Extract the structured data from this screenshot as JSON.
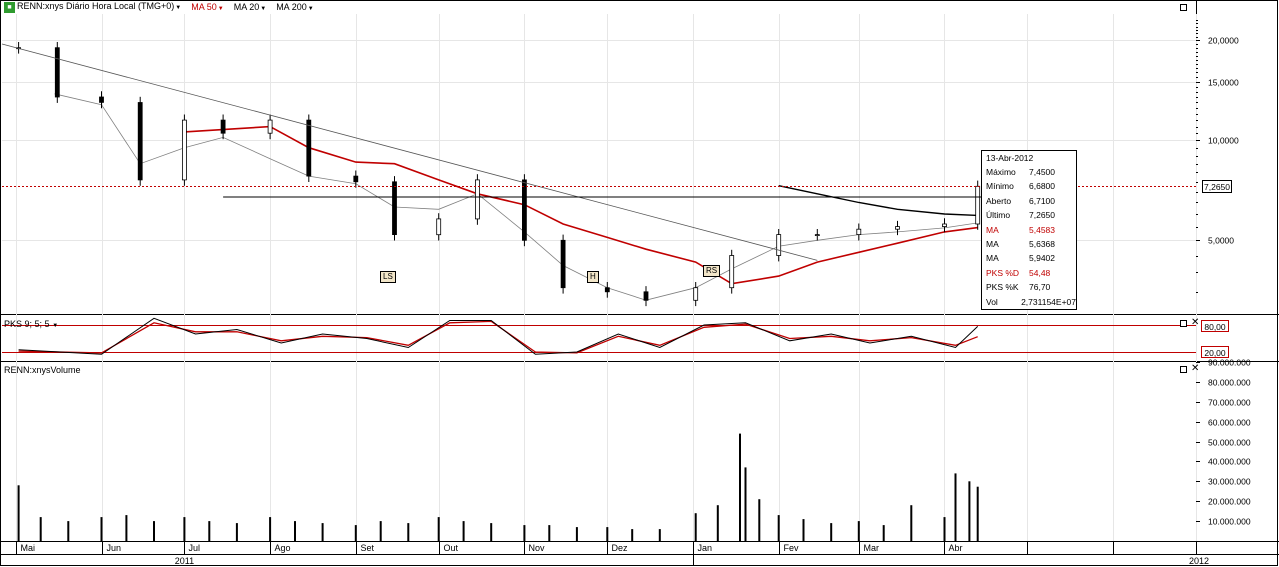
{
  "toolbar": {
    "symbol_title": "RENN:xnys Diário Hora Local (TMG+0)",
    "ma_a": "MA 50",
    "ma_b": "MA 20",
    "ma_c": "MA 200",
    "colors": {
      "ma_a": "#c00000",
      "ma_b": "#808080",
      "ma_c": "#000000"
    }
  },
  "osc": {
    "label": "PKS 9; 5; 5",
    "upper": "80,00",
    "lower": "20,00"
  },
  "volume_panel": {
    "label": "RENN:xnysVolume"
  },
  "price_tag": "7,2650",
  "patterns": {
    "ls": "LS",
    "h": "H",
    "rs": "RS"
  },
  "info": {
    "date": "13-Abr-2012",
    "rows": [
      {
        "k": "Máximo",
        "v": "7,4500",
        "red": false
      },
      {
        "k": "Mínimo",
        "v": "6,6800",
        "red": false
      },
      {
        "k": "Aberto",
        "v": "6,7100",
        "red": false
      },
      {
        "k": "Último",
        "v": "7,2650",
        "red": false
      },
      {
        "k": "MA",
        "v": "5,4583",
        "red": true
      },
      {
        "k": "MA",
        "v": "5,6368",
        "red": false
      },
      {
        "k": "MA",
        "v": "5,9402",
        "red": false
      },
      {
        "k": "PKS %D",
        "v": "54,48",
        "red": true
      },
      {
        "k": "PKS %K",
        "v": "76,70",
        "red": false
      },
      {
        "k": "Vol",
        "v": "2,731154E+07",
        "red": false
      }
    ]
  },
  "chart_data": [
    {
      "type": "line",
      "panel": "price",
      "scale": "log",
      "ylim": [
        3.0,
        24.0
      ],
      "yticks": [
        5,
        10,
        15,
        20
      ],
      "ytick_labels": [
        "5,0000",
        "10,0000",
        "15,0000",
        "20,0000"
      ],
      "x_months": [
        "Mai",
        "Jun",
        "Jul",
        "Ago",
        "Set",
        "Out",
        "Nov",
        "Dez",
        "Jan",
        "Fev",
        "Mar",
        "Abr"
      ],
      "x_years": [
        "2011",
        "2012"
      ],
      "series": [
        {
          "name": "RENN:xnys",
          "color": "#000000",
          "x": [
            "2011-05-02",
            "2011-05-16",
            "2011-06-01",
            "2011-06-15",
            "2011-07-01",
            "2011-07-15",
            "2011-08-01",
            "2011-08-15",
            "2011-09-01",
            "2011-09-15",
            "2011-10-01",
            "2011-10-15",
            "2011-11-01",
            "2011-11-15",
            "2011-12-01",
            "2011-12-15",
            "2012-01-02",
            "2012-01-15",
            "2012-02-01",
            "2012-02-15",
            "2012-03-01",
            "2012-03-15",
            "2012-04-01",
            "2012-04-13"
          ],
          "values": [
            19.0,
            13.5,
            13.0,
            7.6,
            11.5,
            10.5,
            11.5,
            7.8,
            7.5,
            5.2,
            5.8,
            7.6,
            5.0,
            3.6,
            3.5,
            3.3,
            3.6,
            4.5,
            5.2,
            5.2,
            5.4,
            5.5,
            5.6,
            7.27
          ]
        },
        {
          "name": "MA 50",
          "color": "#c00000",
          "x": [
            "2011-07-01",
            "2011-08-01",
            "2011-08-15",
            "2011-09-01",
            "2011-09-15",
            "2011-10-01",
            "2011-10-15",
            "2011-11-01",
            "2011-11-15",
            "2011-12-01",
            "2011-12-15",
            "2012-01-02",
            "2012-01-15",
            "2012-02-01",
            "2012-02-15",
            "2012-03-01",
            "2012-03-15",
            "2012-04-01",
            "2012-04-13"
          ],
          "values": [
            10.6,
            11.0,
            9.5,
            8.6,
            8.5,
            7.6,
            6.9,
            6.4,
            5.6,
            5.1,
            4.7,
            4.3,
            3.7,
            3.9,
            4.3,
            4.6,
            4.9,
            5.3,
            5.46
          ]
        },
        {
          "name": "MA 20",
          "color": "#808080",
          "x": [
            "2011-05-15",
            "2011-06-01",
            "2011-06-15",
            "2011-07-01",
            "2011-07-15",
            "2011-08-01",
            "2011-08-15",
            "2011-09-01",
            "2011-09-15",
            "2011-10-01",
            "2011-10-15",
            "2011-11-01",
            "2011-11-15",
            "2011-12-01",
            "2011-12-15",
            "2012-01-02",
            "2012-01-15",
            "2012-02-01",
            "2012-02-15",
            "2012-03-01",
            "2012-03-15",
            "2012-04-01",
            "2012-04-13"
          ],
          "values": [
            13.8,
            12.8,
            8.5,
            9.5,
            10.2,
            8.8,
            7.8,
            7.4,
            6.3,
            6.2,
            6.9,
            5.3,
            4.2,
            3.6,
            3.3,
            3.6,
            4.1,
            4.8,
            5.0,
            5.2,
            5.3,
            5.45,
            5.64
          ]
        },
        {
          "name": "MA 200",
          "color": "#000000",
          "x": [
            "2012-02-01",
            "2012-02-15",
            "2012-03-01",
            "2012-03-15",
            "2012-04-01",
            "2012-04-13"
          ],
          "values": [
            7.3,
            6.9,
            6.5,
            6.2,
            6.0,
            5.94
          ]
        }
      ]
    },
    {
      "type": "line",
      "panel": "oscillator",
      "title": "PKS 9; 5; 5",
      "ylim": [
        0,
        100
      ],
      "hlines": [
        80,
        20
      ],
      "series": [
        {
          "name": "PKS %K",
          "color": "#000000",
          "x": [
            "2011-05-02",
            "2011-06-01",
            "2011-06-20",
            "2011-07-05",
            "2011-07-20",
            "2011-08-05",
            "2011-08-20",
            "2011-09-05",
            "2011-09-20",
            "2011-10-05",
            "2011-10-20",
            "2011-11-05",
            "2011-11-20",
            "2011-12-05",
            "2011-12-20",
            "2012-01-05",
            "2012-01-20",
            "2012-02-05",
            "2012-02-20",
            "2012-03-05",
            "2012-03-20",
            "2012-04-05",
            "2012-04-13"
          ],
          "values": [
            25,
            15,
            95,
            60,
            70,
            40,
            60,
            50,
            30,
            90,
            90,
            15,
            20,
            60,
            30,
            80,
            85,
            45,
            60,
            40,
            55,
            30,
            77
          ]
        },
        {
          "name": "PKS %D",
          "color": "#c00000",
          "x": [
            "2011-05-02",
            "2011-06-01",
            "2011-06-20",
            "2011-07-05",
            "2011-07-20",
            "2011-08-05",
            "2011-08-20",
            "2011-09-05",
            "2011-09-20",
            "2011-10-05",
            "2011-10-20",
            "2011-11-05",
            "2011-11-20",
            "2011-12-05",
            "2011-12-20",
            "2012-01-05",
            "2012-01-20",
            "2012-02-05",
            "2012-02-20",
            "2012-03-05",
            "2012-03-20",
            "2012-04-05",
            "2012-04-13"
          ],
          "values": [
            22,
            18,
            85,
            65,
            65,
            45,
            55,
            52,
            35,
            85,
            88,
            20,
            18,
            55,
            35,
            75,
            82,
            50,
            55,
            45,
            52,
            35,
            54
          ]
        }
      ]
    },
    {
      "type": "bar",
      "panel": "volume",
      "title": "RENN:xnysVolume",
      "ylim": [
        0,
        90000000
      ],
      "yticks": [
        10000000,
        20000000,
        30000000,
        40000000,
        50000000,
        60000000,
        70000000,
        80000000,
        90000000
      ],
      "ytick_labels": [
        "10.000.000",
        "20.000.000",
        "30.000.000",
        "40.000.000",
        "50.000.000",
        "60.000.000",
        "70.000.000",
        "80.000.000",
        "90.000.000"
      ],
      "x": [
        "2011-05-02",
        "2011-05-10",
        "2011-05-20",
        "2011-06-01",
        "2011-06-10",
        "2011-06-20",
        "2011-07-01",
        "2011-07-10",
        "2011-07-20",
        "2011-08-01",
        "2011-08-10",
        "2011-08-20",
        "2011-09-01",
        "2011-09-10",
        "2011-09-20",
        "2011-10-01",
        "2011-10-10",
        "2011-10-20",
        "2011-11-01",
        "2011-11-10",
        "2011-11-20",
        "2011-12-01",
        "2011-12-10",
        "2011-12-20",
        "2012-01-02",
        "2012-01-10",
        "2012-01-18",
        "2012-01-20",
        "2012-01-25",
        "2012-02-01",
        "2012-02-10",
        "2012-02-20",
        "2012-03-01",
        "2012-03-10",
        "2012-03-20",
        "2012-04-01",
        "2012-04-05",
        "2012-04-10",
        "2012-04-13"
      ],
      "values": [
        28000000,
        12000000,
        10000000,
        12000000,
        13000000,
        10000000,
        12000000,
        10000000,
        9000000,
        12000000,
        10000000,
        9000000,
        8000000,
        10000000,
        9000000,
        12000000,
        10000000,
        9000000,
        8000000,
        8000000,
        7000000,
        7000000,
        6000000,
        6000000,
        14000000,
        18000000,
        54000000,
        37000000,
        21000000,
        13000000,
        11000000,
        9000000,
        10000000,
        8000000,
        18000000,
        12000000,
        34000000,
        30000000,
        27310000
      ]
    }
  ]
}
